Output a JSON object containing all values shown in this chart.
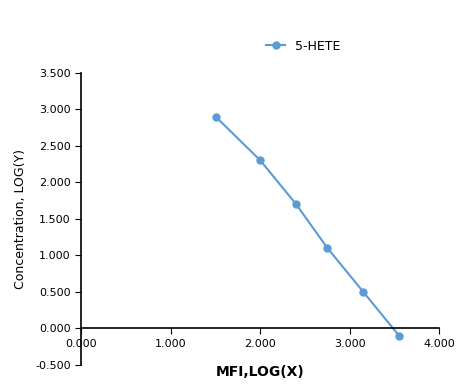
{
  "x": [
    1.5,
    2.0,
    2.4,
    2.75,
    3.15,
    3.55
  ],
  "y": [
    2.9,
    2.3,
    1.7,
    1.1,
    0.5,
    -0.1
  ],
  "line_color": "#5B9BD5",
  "marker": "o",
  "marker_size": 5,
  "label": "5-HETE",
  "xlabel": "MFI,LOG(X)",
  "ylabel": "Concentration, LOG(Y)",
  "xlim": [
    0.0,
    4.0
  ],
  "ylim": [
    -0.5,
    3.5
  ],
  "xticks": [
    0.0,
    1.0,
    2.0,
    3.0,
    4.0
  ],
  "yticks": [
    -0.5,
    0.0,
    0.5,
    1.0,
    1.5,
    2.0,
    2.5,
    3.0,
    3.5
  ],
  "tick_fontsize": 8,
  "axis_label_fontsize": 9,
  "xlabel_fontsize": 10,
  "legend_fontsize": 9,
  "background_color": "#ffffff"
}
